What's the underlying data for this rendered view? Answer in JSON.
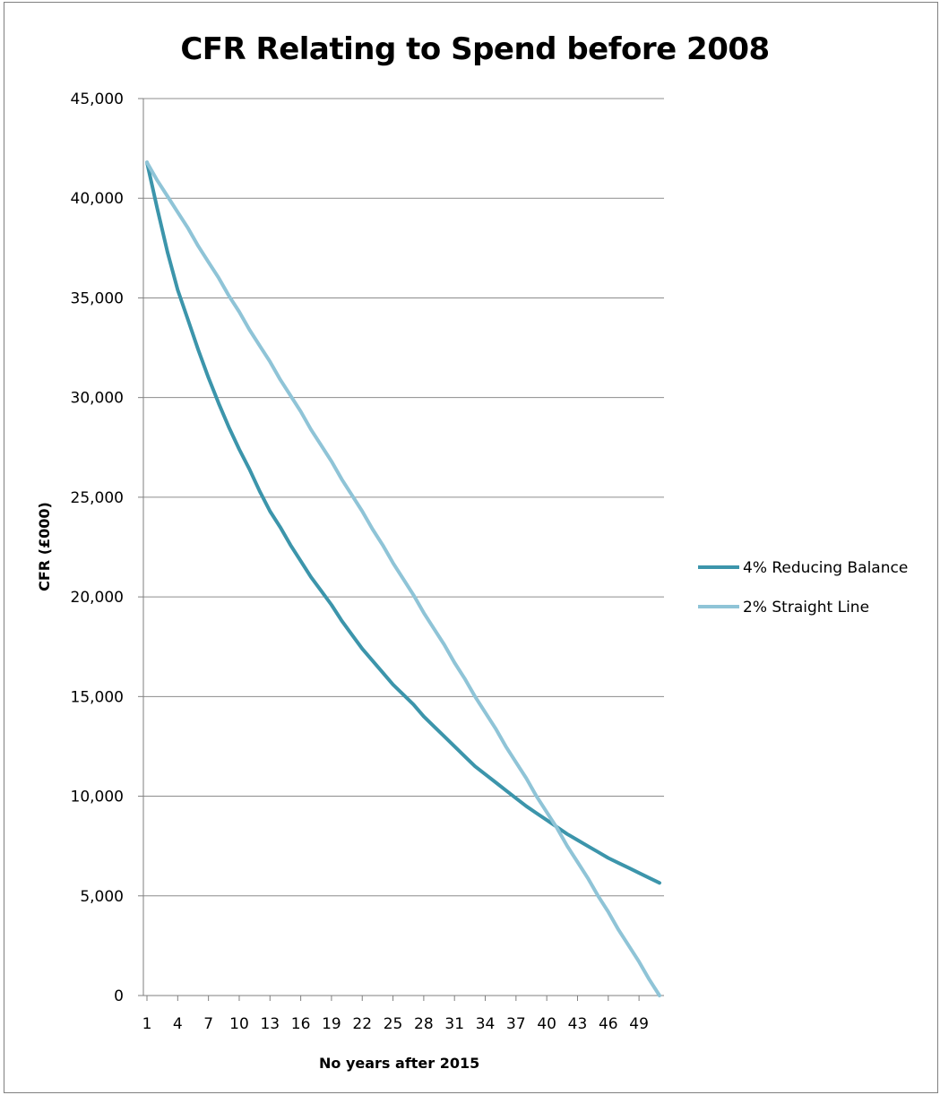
{
  "chart_data": {
    "type": "line",
    "title": "CFR Relating to Spend before 2008",
    "xlabel": "No years after 2015",
    "ylabel": "CFR (£000)",
    "ylim": [
      0,
      45000
    ],
    "xlim": [
      1,
      51
    ],
    "y_ticks": [
      0,
      5000,
      10000,
      15000,
      20000,
      25000,
      30000,
      35000,
      40000,
      45000
    ],
    "y_tick_labels": [
      "0",
      "5,000",
      "10,000",
      "15,000",
      "20,000",
      "25,000",
      "30,000",
      "35,000",
      "40,000",
      "45,000"
    ],
    "x_ticks": [
      1,
      4,
      7,
      10,
      13,
      16,
      19,
      22,
      25,
      28,
      31,
      34,
      37,
      40,
      43,
      46,
      49
    ],
    "x_tick_labels": [
      "1",
      "4",
      "7",
      "10",
      "13",
      "16",
      "19",
      "22",
      "25",
      "28",
      "31",
      "34",
      "37",
      "40",
      "43",
      "46",
      "49"
    ],
    "grid": true,
    "legend_position": "right",
    "x": [
      1,
      2,
      3,
      4,
      5,
      6,
      7,
      8,
      9,
      10,
      11,
      12,
      13,
      14,
      15,
      16,
      17,
      18,
      19,
      20,
      21,
      22,
      23,
      24,
      25,
      26,
      27,
      28,
      29,
      30,
      31,
      32,
      33,
      34,
      35,
      36,
      37,
      38,
      39,
      40,
      41,
      42,
      43,
      44,
      45,
      46,
      47,
      48,
      49,
      50,
      51
    ],
    "series": [
      {
        "name": "4% Reducing Balance",
        "color": "#3c95ab",
        "values": [
          41800,
          39500,
          37300,
          35400,
          33900,
          32400,
          31000,
          29700,
          28500,
          27400,
          26400,
          25300,
          24300,
          23500,
          22600,
          21800,
          21000,
          20300,
          19600,
          18800,
          18100,
          17400,
          16800,
          16200,
          15600,
          15100,
          14600,
          14000,
          13500,
          13000,
          12500,
          12000,
          11500,
          11100,
          10700,
          10300,
          9900,
          9500,
          9150,
          8800,
          8450,
          8100,
          7800,
          7500,
          7200,
          6900,
          6650,
          6400,
          6150,
          5900,
          5650
        ]
      },
      {
        "name": "2% Straight Line",
        "color": "#8fc4d7",
        "values": [
          41800,
          40900,
          40100,
          39300,
          38500,
          37600,
          36800,
          36000,
          35100,
          34300,
          33400,
          32600,
          31800,
          30900,
          30100,
          29300,
          28400,
          27600,
          26800,
          25900,
          25100,
          24300,
          23400,
          22600,
          21700,
          20900,
          20100,
          19200,
          18400,
          17600,
          16700,
          15900,
          15000,
          14200,
          13400,
          12500,
          11700,
          10900,
          10000,
          9200,
          8400,
          7500,
          6700,
          5900,
          5000,
          4200,
          3300,
          2500,
          1700,
          800,
          0
        ]
      }
    ]
  }
}
